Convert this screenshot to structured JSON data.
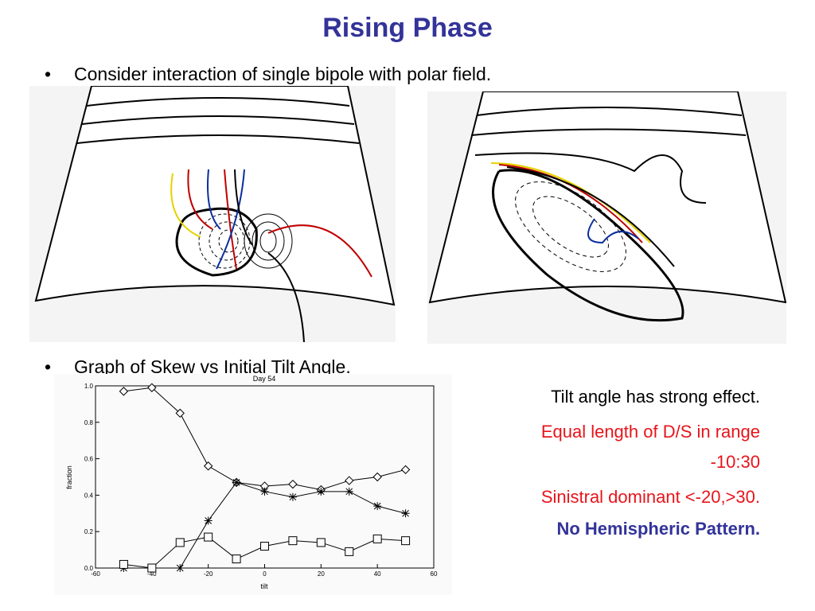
{
  "title": "Rising Phase",
  "bullets": [
    "Consider interaction of single bipole with polar field.",
    "Graph of Skew  vs  Initial Tilt Angle."
  ],
  "notes": [
    {
      "text": "Tilt angle has strong effect.",
      "color": "#000000",
      "bold": false
    },
    {
      "text": "Equal length of D/S in range",
      "color": "#e8141b",
      "bold": false
    },
    {
      "text": "-10:30",
      "color": "#e8141b",
      "bold": false
    },
    {
      "text": "Sinistral dominant <-20,>30.",
      "color": "#e8141b",
      "bold": false
    },
    {
      "text": "No Hemispheric Pattern.",
      "color": "#333399",
      "bold": true
    }
  ],
  "chart_data": {
    "type": "line",
    "title": "Day 54",
    "x_label": "tilt",
    "y_label": "fraction",
    "x": [
      -50,
      -40,
      -30,
      -20,
      -10,
      0,
      10,
      20,
      30,
      40,
      50
    ],
    "series": [
      {
        "marker": "diamond",
        "color": "#000000",
        "values": [
          0.97,
          0.99,
          0.85,
          0.56,
          0.47,
          0.45,
          0.46,
          0.43,
          0.48,
          0.5,
          0.54
        ]
      },
      {
        "marker": "star",
        "color": "#000000",
        "values": [
          0.0,
          0.0,
          0.0,
          0.26,
          0.47,
          0.42,
          0.39,
          0.42,
          0.42,
          0.34,
          0.3
        ]
      },
      {
        "marker": "square",
        "color": "#000000",
        "values": [
          0.02,
          0.0,
          0.14,
          0.17,
          0.05,
          0.12,
          0.15,
          0.14,
          0.09,
          0.16,
          0.15
        ]
      }
    ],
    "xlim": [
      -60,
      60
    ],
    "xticks": [
      -60,
      -40,
      -20,
      0,
      20,
      40,
      60
    ],
    "ylim": [
      0,
      1
    ],
    "yticks": [
      {
        "value": 0,
        "label": "0.0"
      },
      0.2,
      0.4,
      0.6,
      0.8,
      {
        "value": 1,
        "label": "1.0"
      }
    ]
  }
}
